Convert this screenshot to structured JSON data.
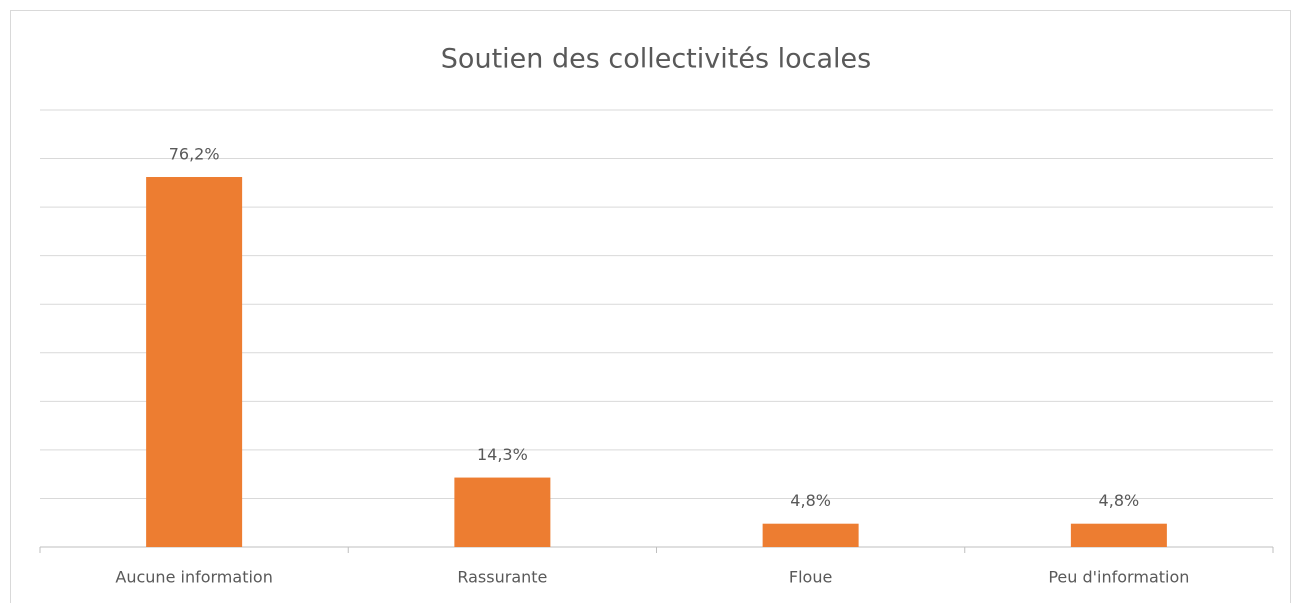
{
  "chart_data": {
    "type": "bar",
    "title": "Soutien des collectivités locales",
    "categories": [
      "Aucune information",
      "Rassurante",
      "Floue",
      "Peu d'information"
    ],
    "values": [
      76.2,
      14.3,
      4.8,
      4.8
    ],
    "value_labels": [
      "76,2%",
      "14,3%",
      "4,8%",
      "4,8%"
    ],
    "color": "#ed7d31",
    "ylim": [
      0,
      90
    ],
    "yticks": [
      0,
      10,
      20,
      30,
      40,
      50,
      60,
      70,
      80,
      90
    ],
    "grid": true
  }
}
